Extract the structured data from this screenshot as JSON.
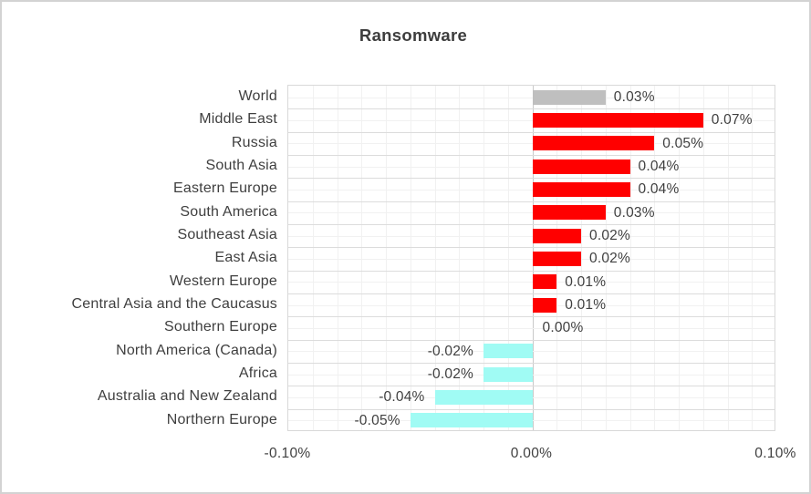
{
  "chart_data": {
    "type": "bar",
    "orientation": "horizontal",
    "title": "Ransomware",
    "categories": [
      "World",
      "Middle East",
      "Russia",
      "South Asia",
      "Eastern Europe",
      "South America",
      "Southeast Asia",
      "East Asia",
      "Western Europe",
      "Central Asia and the Caucasus",
      "Southern Europe",
      "North America (Canada)",
      "Africa",
      "Australia and New Zealand",
      "Northern Europe"
    ],
    "values": [
      0.03,
      0.07,
      0.05,
      0.04,
      0.04,
      0.03,
      0.02,
      0.02,
      0.01,
      0.01,
      0.0,
      -0.02,
      -0.02,
      -0.04,
      -0.05
    ],
    "value_labels": [
      "0.03%",
      "0.07%",
      "0.05%",
      "0.04%",
      "0.04%",
      "0.03%",
      "0.02%",
      "0.02%",
      "0.01%",
      "0.01%",
      "0.00%",
      "-0.02%",
      "-0.02%",
      "-0.04%",
      "-0.05%"
    ],
    "bar_colors": [
      "#bfbfbf",
      "#ff0000",
      "#ff0000",
      "#ff0000",
      "#ff0000",
      "#ff0000",
      "#ff0000",
      "#ff0000",
      "#ff0000",
      "#ff0000",
      "#ff0000",
      "#a0fbf4",
      "#a0fbf4",
      "#a0fbf4",
      "#a0fbf4"
    ],
    "colors": {
      "world_bar": "#bfbfbf",
      "positive_bar": "#ff0000",
      "negative_bar": "#a0fbf4",
      "text": "#3f3f3f",
      "gridline_minor": "#f1f1f1",
      "gridline_major": "#dcdcdc",
      "zero_line": "#c9c9c9",
      "frame_border": "#d3d3d3"
    },
    "xlim": [
      -0.1,
      0.1
    ],
    "x_ticks": [
      {
        "value": -0.1,
        "label": "-0.10%"
      },
      {
        "value": 0.0,
        "label": "0.00%"
      },
      {
        "value": 0.1,
        "label": "0.10%"
      }
    ],
    "gridline_step": 0.01,
    "grid": "on",
    "legend": "none"
  }
}
